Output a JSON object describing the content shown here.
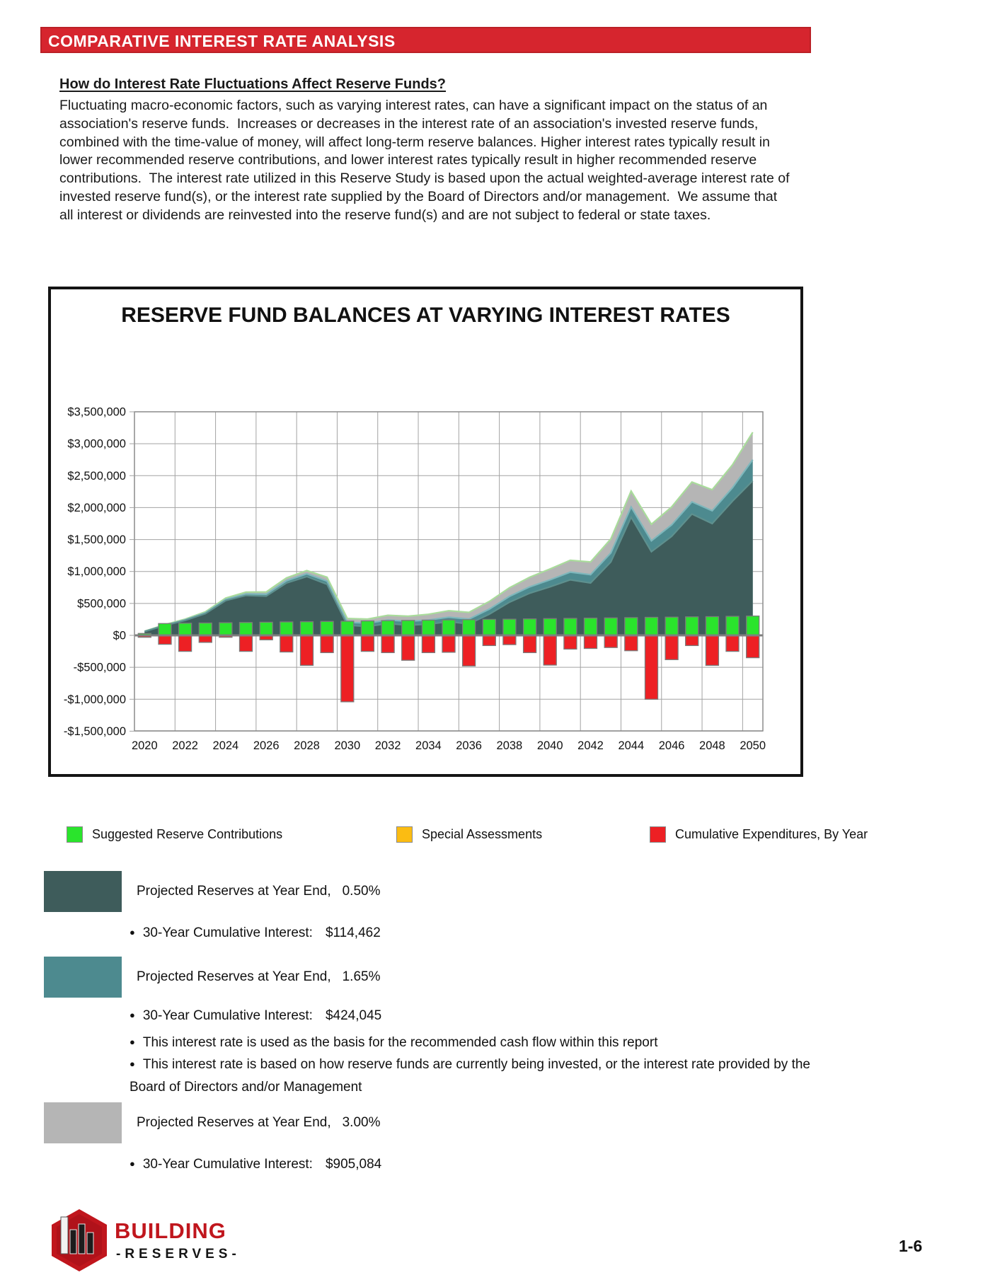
{
  "header": {
    "title": "COMPARATIVE INTEREST RATE ANALYSIS"
  },
  "intro": {
    "heading": "How do Interest Rate Fluctuations Affect Reserve Funds?",
    "body": "Fluctuating macro-economic factors, such as varying interest rates, can have a significant impact on the status of an association's reserve funds.  Increases or decreases in the interest rate of an association's invested reserve funds, combined with the time-value of money, will affect long-term reserve balances. Higher interest rates typically result in lower recommended reserve contributions, and lower interest rates typically result in higher recommended reserve contributions.  The interest rate utilized in this Reserve Study is based upon the actual weighted-average interest rate of invested reserve fund(s), or the interest rate supplied by the Board of Directors and/or management.  We assume that all interest or dividends are reinvested into the reserve fund(s) and are not subject to federal or state taxes."
  },
  "chart_data": {
    "type": "area",
    "title": "RESERVE FUND BALANCES AT VARYING INTEREST RATES",
    "x": [
      2020,
      2021,
      2022,
      2023,
      2024,
      2025,
      2026,
      2027,
      2028,
      2029,
      2030,
      2031,
      2032,
      2033,
      2034,
      2035,
      2036,
      2037,
      2038,
      2039,
      2040,
      2041,
      2042,
      2043,
      2044,
      2045,
      2046,
      2047,
      2048,
      2049,
      2050
    ],
    "xtick_labels": [
      "2020",
      "2022",
      "2024",
      "2026",
      "2028",
      "2030",
      "2032",
      "2034",
      "2036",
      "2038",
      "2040",
      "2042",
      "2044",
      "2046",
      "2048",
      "2050"
    ],
    "ylim": [
      -1500000,
      3500000
    ],
    "ytick_interval": 500000,
    "ytick_labels": [
      "$3,500,000",
      "$3,000,000",
      "$2,500,000",
      "$2,000,000",
      "$1,500,000",
      "$1,000,000",
      "$500,000",
      "$0",
      "-$500,000",
      "-$1,000,000",
      "-$1,500,000"
    ],
    "grid": true,
    "series": [
      {
        "name": "Projected Reserves at Year End, 3.00%",
        "type": "area",
        "color": "#B5B5B5",
        "edge": "#A9DC9B",
        "values": [
          65000,
          168000,
          255000,
          370000,
          585000,
          678000,
          680000,
          900000,
          1015000,
          910000,
          265000,
          255000,
          315000,
          300000,
          330000,
          385000,
          360000,
          530000,
          745000,
          910000,
          1040000,
          1175000,
          1150000,
          1510000,
          2260000,
          1740000,
          2010000,
          2400000,
          2280000,
          2670000,
          3180000
        ]
      },
      {
        "name": "Projected Reserves at Year End, 1.65%",
        "type": "area",
        "color": "#4D8A8F",
        "edge": "#7EB7BC",
        "values": [
          62000,
          160000,
          243000,
          352000,
          562000,
          648000,
          643000,
          855000,
          962000,
          848000,
          205000,
          190000,
          240000,
          220000,
          240000,
          285000,
          255000,
          410000,
          610000,
          760000,
          870000,
          990000,
          950000,
          1290000,
          2010000,
          1480000,
          1730000,
          2090000,
          1950000,
          2310000,
          2750000
        ]
      },
      {
        "name": "Projected Reserves at Year End, 0.50%",
        "type": "area",
        "color": "#3E5C5B",
        "edge": "#5E908E",
        "values": [
          60000,
          155000,
          235000,
          340000,
          545000,
          625000,
          615000,
          820000,
          920000,
          800000,
          160000,
          140000,
          185000,
          160000,
          175000,
          215000,
          180000,
          330000,
          520000,
          660000,
          760000,
          870000,
          820000,
          1150000,
          1850000,
          1310000,
          1550000,
          1900000,
          1750000,
          2100000,
          2420000
        ]
      },
      {
        "name": "Suggested Reserve Contributions",
        "type": "bar",
        "color": "#2AE42C",
        "values": [
          30000,
          185000,
          190000,
          194000,
          198000,
          202000,
          206000,
          210000,
          214000,
          218000,
          222000,
          226000,
          230000,
          234000,
          238000,
          242000,
          246000,
          250000,
          254000,
          258000,
          262000,
          266000,
          270000,
          274000,
          278000,
          282000,
          286000,
          290000,
          294000,
          298000,
          302000
        ]
      },
      {
        "name": "Special Assessments",
        "type": "bar",
        "color": "#FBBC12",
        "values": [
          0,
          0,
          0,
          0,
          0,
          0,
          0,
          0,
          0,
          0,
          0,
          0,
          0,
          0,
          0,
          0,
          0,
          0,
          0,
          0,
          0,
          0,
          0,
          0,
          0,
          0,
          0,
          0,
          0,
          0,
          0
        ]
      },
      {
        "name": "Cumulative Expenditures, By Year",
        "type": "bar",
        "color": "#ED2024",
        "values": [
          -30000,
          -140000,
          -250000,
          -110000,
          -30000,
          -250000,
          -70000,
          -260000,
          -470000,
          -270000,
          -1040000,
          -250000,
          -270000,
          -390000,
          -270000,
          -265000,
          -480000,
          -160000,
          -145000,
          -270000,
          -465000,
          -215000,
          -205000,
          -190000,
          -240000,
          -1000000,
          -380000,
          -160000,
          -470000,
          -250000,
          -350000
        ]
      }
    ]
  },
  "legend": {
    "items": [
      {
        "label": "Suggested Reserve Contributions",
        "color": "#2AE42C"
      },
      {
        "label": "Special Assessments",
        "color": "#FBBC12"
      },
      {
        "label": "Cumulative Expenditures, By Year",
        "color": "#ED2024"
      }
    ]
  },
  "sections": [
    {
      "color": "#3E5C5B",
      "label": "Projected Reserves at Year End,",
      "rate": "0.50%",
      "bullets": [
        {
          "label": "30-Year Cumulative Interest:",
          "value": "$114,462"
        }
      ]
    },
    {
      "color": "#4D8A8F",
      "label": "Projected Reserves at Year End,",
      "rate": "1.65%",
      "bullets": [
        {
          "label": "30-Year Cumulative Interest:",
          "value": "$424,045"
        },
        {
          "label": "This interest rate is used as the basis for the recommended cash flow within this report",
          "value": ""
        },
        {
          "label": "This interest rate is based on how reserve funds are currently being invested, or the interest rate provided by the Board of Directors and/or Management",
          "value": ""
        }
      ]
    },
    {
      "color": "#B5B5B5",
      "label": "Projected Reserves at Year End,",
      "rate": "3.00%",
      "bullets": [
        {
          "label": "30-Year Cumulative Interest:",
          "value": "$905,084"
        }
      ]
    }
  ],
  "footer": {
    "logo_line1": "BUILDING",
    "logo_line2": "-RESERVES-",
    "page_number": "1-6"
  }
}
